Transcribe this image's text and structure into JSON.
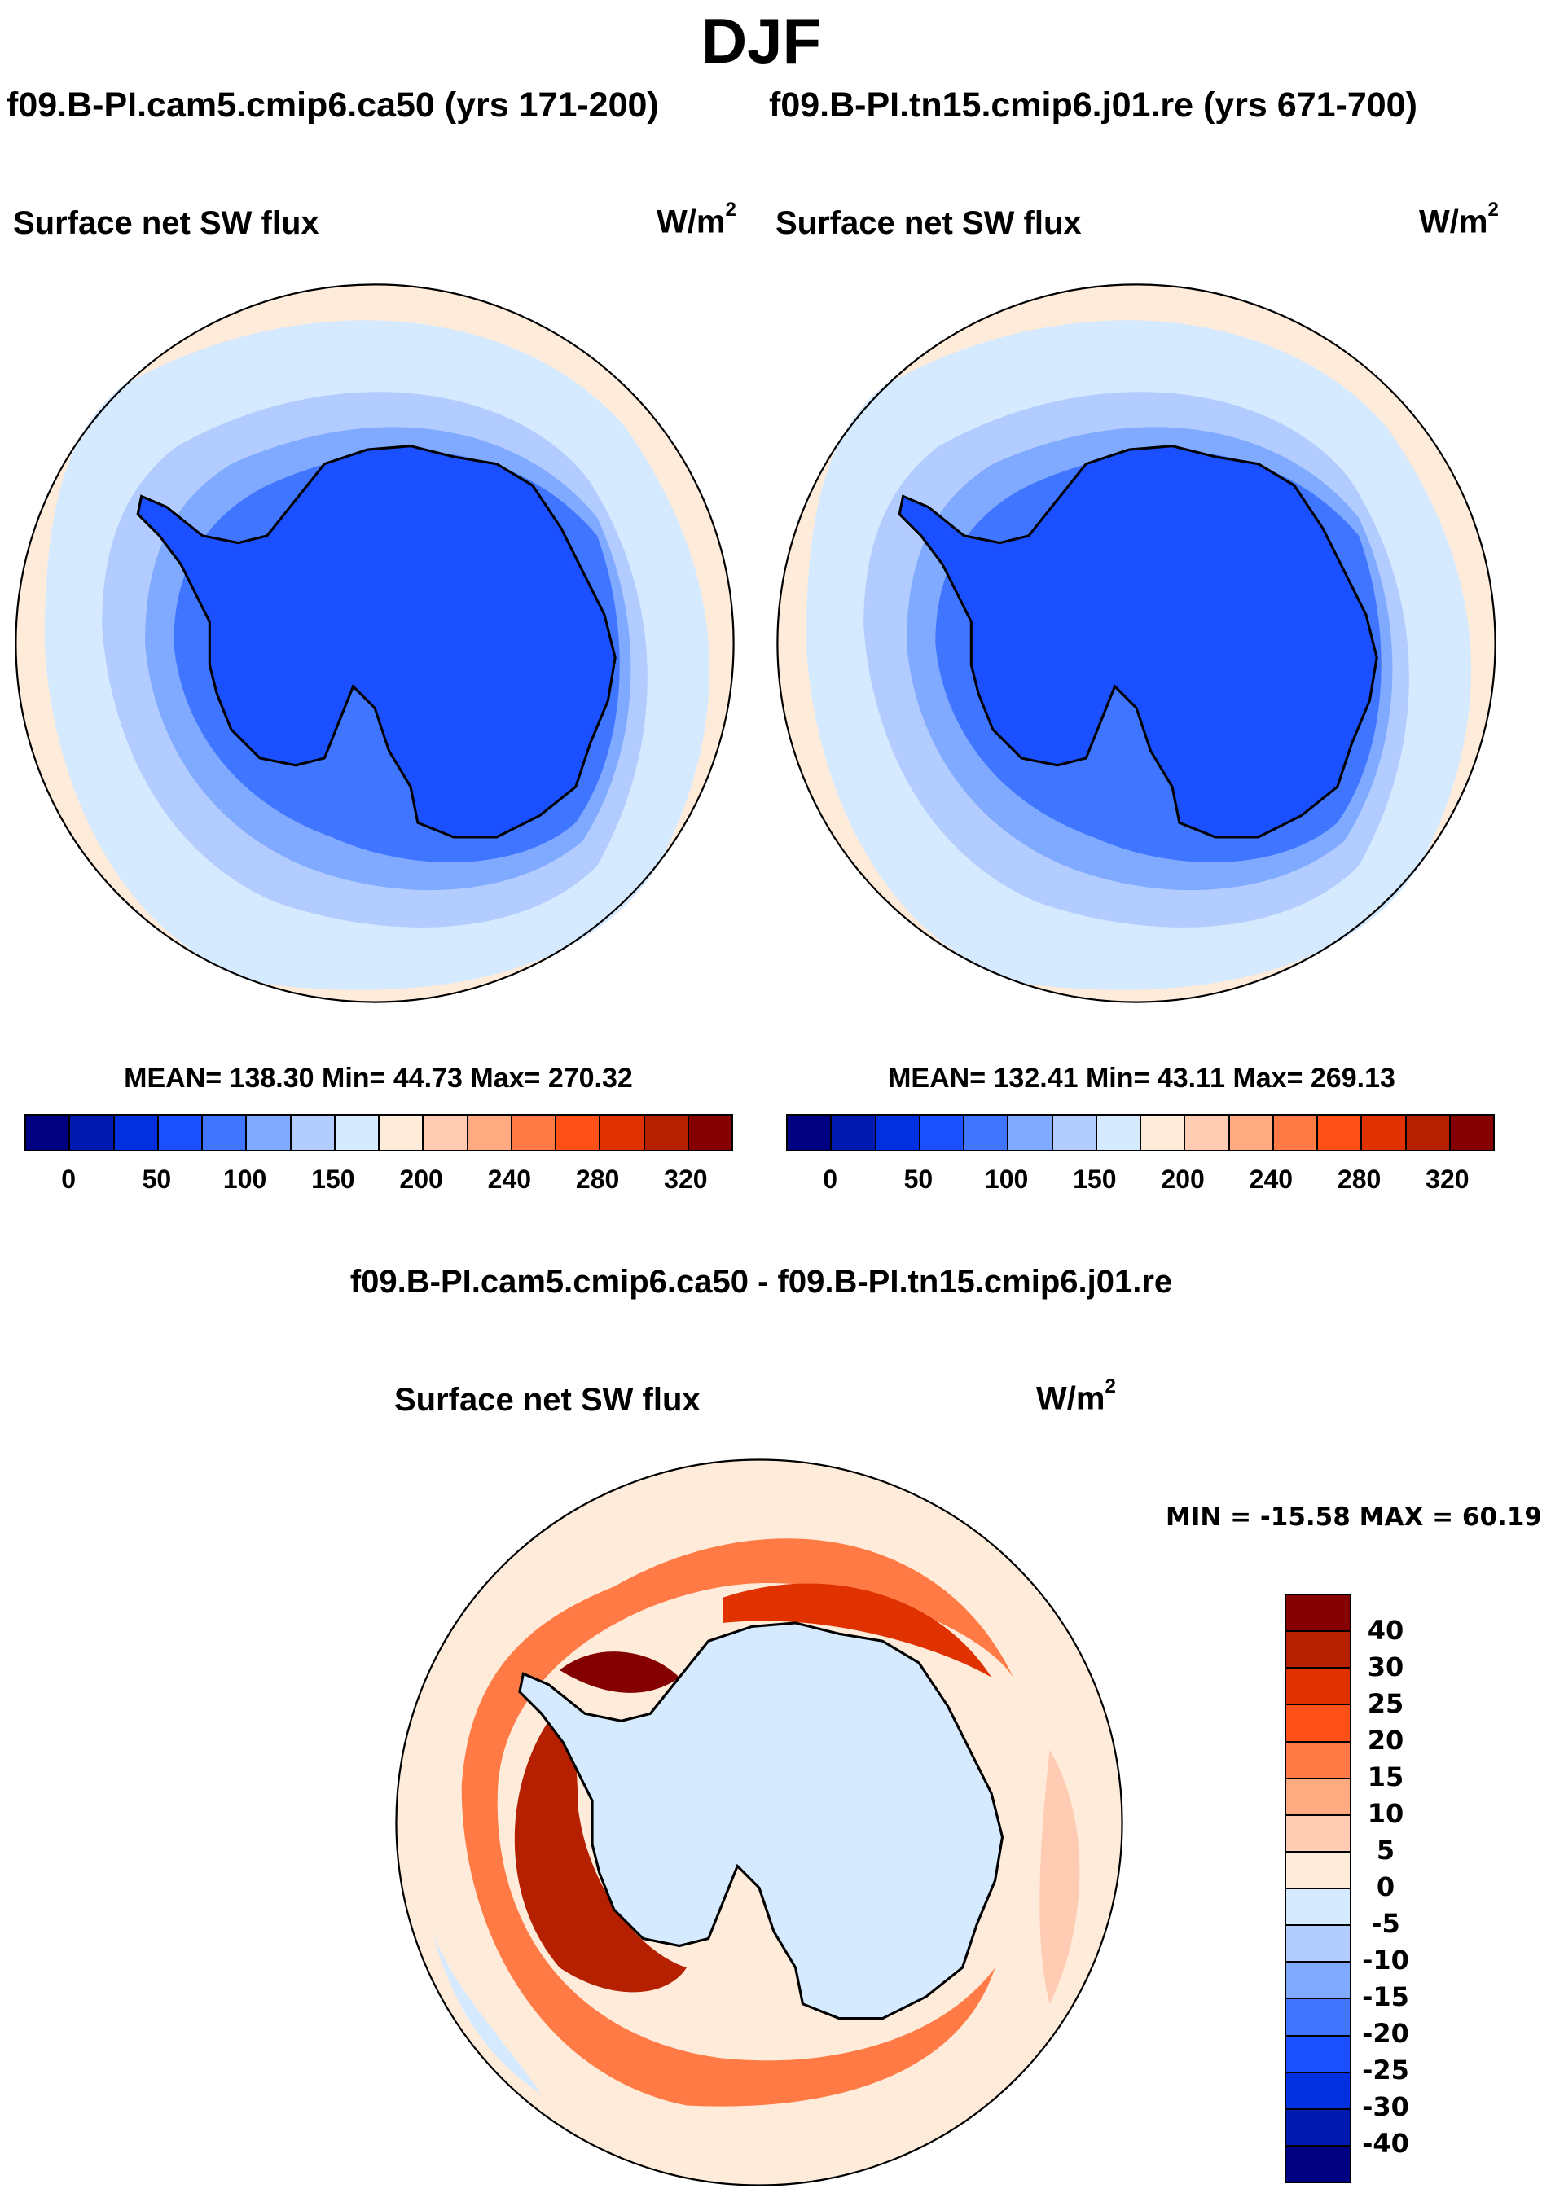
{
  "chart_data": {
    "type": "heatmap",
    "title": "DJF",
    "panels": [
      {
        "case_title": "f09.B-PI.cam5.cmip6.ca50 (yrs 171-200)",
        "title": "Surface net SW flux",
        "units": "W/m",
        "units_sup": "2",
        "stats": "MEAN= 138.30  Min=  44.73  Max= 270.32",
        "mean": 138.3,
        "min": 44.73,
        "max": 270.32,
        "colorbar_ticks": [
          "0",
          "50",
          "100",
          "150",
          "200",
          "240",
          "280",
          "320"
        ]
      },
      {
        "case_title": "f09.B-PI.tn15.cmip6.j01.re (yrs 671-700)",
        "title": "Surface net SW flux",
        "units": "W/m",
        "units_sup": "2",
        "stats": "MEAN= 132.41  Min=  43.11  Max= 269.13",
        "mean": 132.41,
        "min": 43.11,
        "max": 269.13,
        "colorbar_ticks": [
          "0",
          "50",
          "100",
          "150",
          "200",
          "240",
          "280",
          "320"
        ]
      },
      {
        "case_title": "f09.B-PI.cam5.cmip6.ca50 - f09.B-PI.tn15.cmip6.j01.re",
        "title": "Surface net SW flux",
        "units": "W/m",
        "units_sup": "2",
        "stats": "MIN = -15.58 MAX =  60.19",
        "min": -15.58,
        "max": 60.19,
        "colorbar_ticks": [
          "40",
          "30",
          "25",
          "20",
          "15",
          "10",
          "5",
          "0",
          "-5",
          "-10",
          "-15",
          "-20",
          "-25",
          "-30",
          "-40"
        ]
      }
    ],
    "projection": "south polar stereographic"
  },
  "palette": [
    "#000080",
    "#001AB0",
    "#0030E0",
    "#1A50FF",
    "#4076FF",
    "#80AAFF",
    "#B3CCFF",
    "#D6EAFF",
    "#FFEBD9",
    "#FFCBB3",
    "#FFAA80",
    "#FF7A45",
    "#FF5018",
    "#E03200",
    "#B52000",
    "#850000"
  ]
}
